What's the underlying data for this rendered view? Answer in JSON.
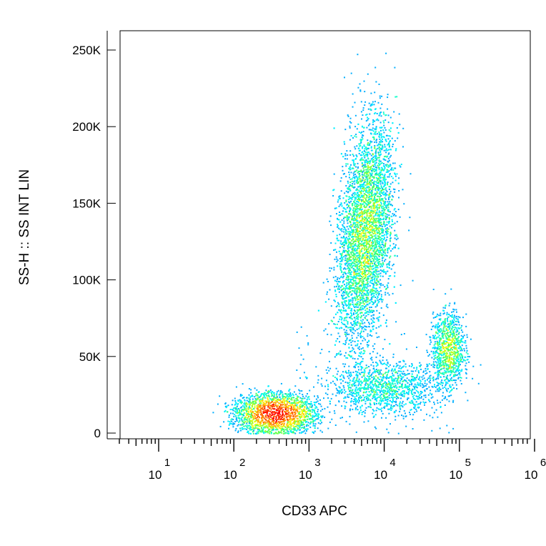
{
  "chart_data": {
    "type": "scatter",
    "subtype": "flow-cytometry-density-dot-plot",
    "xlabel": "CD33 APC",
    "ylabel": "SS-H :: SS INT LIN",
    "x_scale": "log",
    "xlim": [
      10,
      1000000
    ],
    "x_ticks": [
      {
        "base": "10",
        "exp": "1",
        "value": 10
      },
      {
        "base": "10",
        "exp": "2",
        "value": 100
      },
      {
        "base": "10",
        "exp": "3",
        "value": 1000
      },
      {
        "base": "10",
        "exp": "4",
        "value": 10000
      },
      {
        "base": "10",
        "exp": "5",
        "value": 100000
      },
      {
        "base": "10",
        "exp": "6",
        "value": 1000000
      }
    ],
    "y_scale": "linear",
    "ylim": [
      0,
      262144
    ],
    "y_ticks": [
      {
        "label": "0",
        "value": 0
      },
      {
        "label": "50K",
        "value": 50000
      },
      {
        "label": "100K",
        "value": 100000
      },
      {
        "label": "150K",
        "value": 150000
      },
      {
        "label": "200K",
        "value": 200000
      },
      {
        "label": "250K",
        "value": 250000
      }
    ],
    "grid": false,
    "colormap": [
      "#0000ff",
      "#00a0ff",
      "#00ffff",
      "#40ff60",
      "#ffff00",
      "#ff8000",
      "#ff0000"
    ],
    "populations": [
      {
        "x_center": 350,
        "x_spread_decades": 0.22,
        "y_center": 13000,
        "y_spread": 5500,
        "count": 6500,
        "peak_density": "high"
      },
      {
        "x_center": 5500,
        "x_spread_decades": 0.16,
        "y_center": 130000,
        "y_spread": 33000,
        "count": 6000,
        "peak_density": "medium"
      },
      {
        "x_center": 70000,
        "x_spread_decades": 0.1,
        "y_center": 55000,
        "y_spread": 11000,
        "count": 1500,
        "peak_density": "medium-low"
      },
      {
        "x_center": 10000,
        "x_spread_decades": 0.35,
        "y_center": 30000,
        "y_spread": 8000,
        "count": 1300,
        "peak_density": "low"
      }
    ]
  }
}
